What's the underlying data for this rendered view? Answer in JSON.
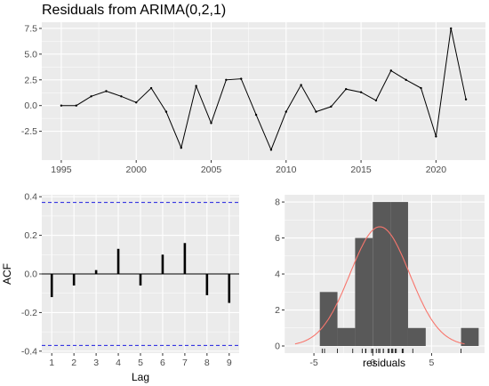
{
  "chart_data": [
    {
      "type": "line",
      "title": "Residuals from ARIMA(0,2,1)",
      "xlabel": "",
      "ylabel": "",
      "x": [
        1995,
        1996,
        1997,
        1998,
        1999,
        2000,
        2001,
        2002,
        2003,
        2004,
        2005,
        2006,
        2007,
        2008,
        2009,
        2010,
        2011,
        2012,
        2013,
        2014,
        2015,
        2016,
        2017,
        2018,
        2019,
        2020,
        2021,
        2022
      ],
      "series": [
        {
          "values": [
            0.0,
            0.0,
            0.9,
            1.4,
            0.9,
            0.3,
            1.7,
            -0.6,
            -4.1,
            1.9,
            -1.7,
            2.5,
            2.6,
            -0.9,
            -4.3,
            -0.6,
            2.0,
            -0.6,
            -0.1,
            1.6,
            1.3,
            0.5,
            3.4,
            2.5,
            1.7,
            -3.0,
            7.5,
            0.6
          ]
        }
      ],
      "xticks": [
        1995,
        2000,
        2005,
        2010,
        2015,
        2020
      ],
      "yticks": [
        -2.5,
        0.0,
        2.5,
        5.0,
        7.5
      ],
      "xlim": [
        1993.7,
        2023.3
      ],
      "ylim": [
        -5.3,
        8.1
      ],
      "grid": true,
      "colors": {
        "panel": "#ebebeb",
        "line": "#000000"
      }
    },
    {
      "type": "bar",
      "title": "",
      "xlabel": "Lag",
      "ylabel": "ACF",
      "categories": [
        1,
        2,
        3,
        4,
        5,
        6,
        7,
        8,
        9
      ],
      "values": [
        -0.12,
        -0.06,
        0.02,
        0.13,
        -0.06,
        0.1,
        0.16,
        -0.11,
        -0.15
      ],
      "xticks": [
        1,
        2,
        3,
        4,
        5,
        6,
        7,
        8,
        9
      ],
      "yticks": [
        -0.4,
        -0.2,
        0.0,
        0.2,
        0.4
      ],
      "ylim": [
        -0.41,
        0.41
      ],
      "confidence_bounds": [
        0.37,
        -0.37
      ],
      "grid": true,
      "colors": {
        "panel": "#ebebeb",
        "bars": "#000000",
        "bounds": "#1f1fe0"
      }
    },
    {
      "type": "bar",
      "title": "",
      "xlabel": "residuals",
      "ylabel": "",
      "bins": [
        {
          "from": -4.5,
          "to": -3.0,
          "count": 3
        },
        {
          "from": -3.0,
          "to": -1.5,
          "count": 1
        },
        {
          "from": -1.5,
          "to": 0.0,
          "count": 6
        },
        {
          "from": 0.0,
          "to": 1.5,
          "count": 8
        },
        {
          "from": 1.5,
          "to": 3.0,
          "count": 8
        },
        {
          "from": 3.0,
          "to": 4.5,
          "count": 1
        },
        {
          "from": 4.5,
          "to": 6.0,
          "count": 0
        },
        {
          "from": 6.0,
          "to": 7.5,
          "count": 0
        },
        {
          "from": 7.5,
          "to": 9.0,
          "count": 1
        }
      ],
      "rug": [
        -4.3,
        -4.1,
        -3.0,
        -1.7,
        -0.9,
        -0.6,
        -0.6,
        -0.6,
        -0.1,
        0.0,
        0.0,
        0.3,
        0.5,
        0.6,
        0.9,
        0.9,
        1.3,
        1.4,
        1.6,
        1.7,
        1.7,
        1.9,
        2.0,
        2.5,
        2.5,
        2.6,
        3.4,
        7.5
      ],
      "normal_curve": {
        "mean": 0.6,
        "sd": 2.53,
        "scale": 42
      },
      "xticks": [
        -5,
        0,
        5
      ],
      "yticks": [
        0,
        2,
        4,
        6,
        8
      ],
      "xlim": [
        -7.5,
        9.5
      ],
      "ylim": [
        0,
        8.4
      ],
      "grid": true,
      "colors": {
        "panel": "#ebebeb",
        "bars": "#595959",
        "curve": "#f8766d",
        "rug": "#000000"
      }
    }
  ]
}
